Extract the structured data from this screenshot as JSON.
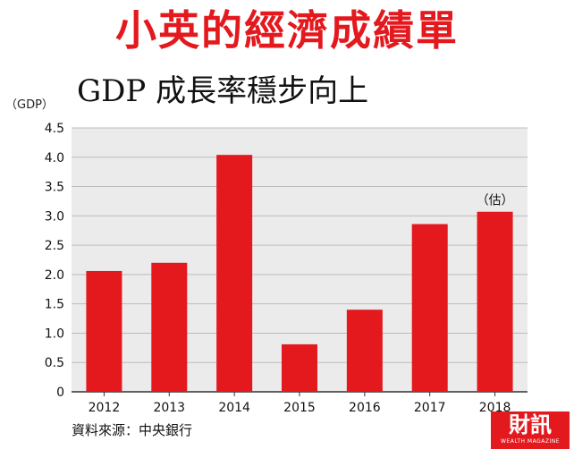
{
  "title": "小英的經濟成績單",
  "subtitle": "GDP 成長率穩步向上",
  "source": "資料來源：中央銀行",
  "logo": {
    "main": "財訊",
    "sub": "WEALTH MAGAZINE"
  },
  "colors": {
    "accent": "#e3191e",
    "grid": "#bcbcbc",
    "plot_bg": "#ebebeb"
  },
  "chart_data": {
    "type": "bar",
    "ylabel": "（GDP）",
    "xlabel": "",
    "categories": [
      "2012",
      "2013",
      "2014",
      "2015",
      "2016",
      "2017",
      "2018"
    ],
    "values": [
      2.06,
      2.2,
      4.04,
      0.81,
      1.4,
      2.86,
      3.07
    ],
    "ylim": [
      0,
      4.5
    ],
    "yticks": [
      "0",
      "0.5",
      "1.0",
      "1.5",
      "2.0",
      "2.5",
      "3.0",
      "3.5",
      "4.0",
      "4.5"
    ],
    "grid": true,
    "annotations": [
      {
        "category": "2018",
        "text": "（估）"
      }
    ]
  }
}
